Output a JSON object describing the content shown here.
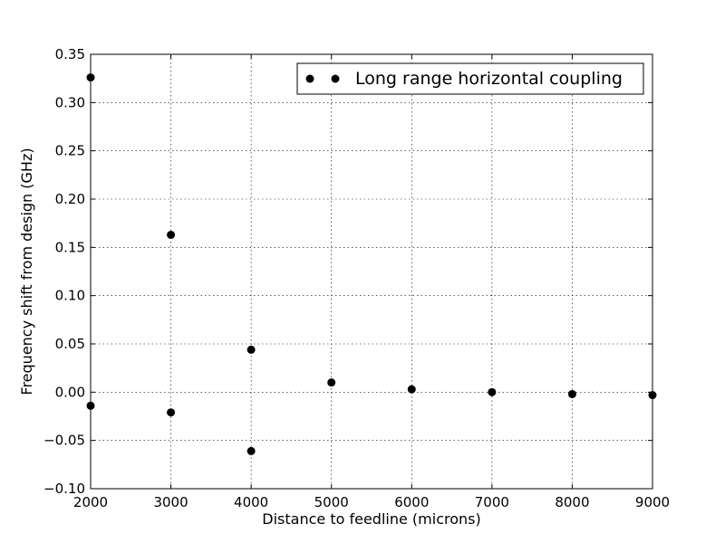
{
  "chart_data": {
    "type": "scatter",
    "title": "",
    "xlabel": "Distance to feedline (microns)",
    "ylabel": "Frequency shift from design (GHz)",
    "xlim": [
      2000,
      9000
    ],
    "ylim": [
      -0.1,
      0.35
    ],
    "xticks": [
      2000,
      3000,
      4000,
      5000,
      6000,
      7000,
      8000,
      9000
    ],
    "xtick_labels": [
      "2000",
      "3000",
      "4000",
      "5000",
      "6000",
      "7000",
      "8000",
      "9000"
    ],
    "yticks": [
      -0.1,
      -0.05,
      0.0,
      0.05,
      0.1,
      0.15,
      0.2,
      0.25,
      0.3,
      0.35
    ],
    "ytick_labels": [
      "−0.10",
      "−0.05",
      "0.00",
      "0.05",
      "0.10",
      "0.15",
      "0.20",
      "0.25",
      "0.30",
      "0.35"
    ],
    "grid": true,
    "legend_position": "top-right",
    "marker_color": "#000000",
    "series": [
      {
        "name": "Long range horizontal coupling",
        "x": [
          2000,
          2000,
          3000,
          3000,
          4000,
          4000,
          5000,
          6000,
          7000,
          8000,
          9000
        ],
        "y": [
          0.326,
          -0.014,
          0.163,
          -0.021,
          0.044,
          -0.061,
          0.01,
          0.003,
          0.0,
          -0.002,
          -0.003
        ]
      }
    ]
  }
}
